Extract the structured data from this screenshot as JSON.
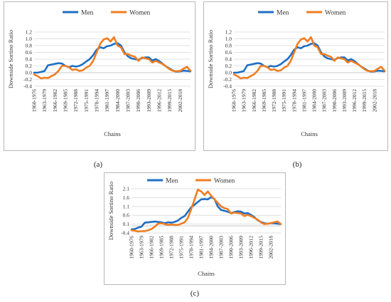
{
  "chart_data": [
    {
      "type": "line",
      "panel_label": "(a)",
      "xlabel": "Chains",
      "ylabel": "Downside Sortino Ratio",
      "ylim": [
        -0.4,
        1.2
      ],
      "yticks": [
        "-0.4",
        "-0.2",
        "0.0",
        "0.2",
        "0.4",
        "0.6",
        "0.8",
        "1.0",
        "1.2"
      ],
      "ytick_values": [
        -0.4,
        -0.2,
        0.0,
        0.2,
        0.4,
        0.6,
        0.8,
        1.0,
        1.2
      ],
      "xtick_labels": [
        "1960-1976",
        "1963-1979",
        "1966-1982",
        "1969-1985",
        "1972-1988",
        "1975-1991",
        "1978-1994",
        "1981-1997",
        "1984-2000",
        "1987-2003",
        "1990-2006",
        "1993-2009",
        "1996-2012",
        "1999-2015",
        "2002-2018"
      ],
      "legend_position": "top",
      "grid": "horizontal",
      "series": [
        {
          "name": "Men",
          "color": "#1f6fc5",
          "values": [
            0.0,
            0.0,
            0.02,
            0.05,
            0.22,
            0.24,
            0.26,
            0.28,
            0.27,
            0.2,
            0.16,
            0.2,
            0.18,
            0.2,
            0.25,
            0.33,
            0.4,
            0.52,
            0.68,
            0.75,
            0.72,
            0.78,
            0.8,
            0.85,
            0.87,
            0.8,
            0.6,
            0.48,
            0.42,
            0.4,
            0.38,
            0.43,
            0.45,
            0.45,
            0.36,
            0.4,
            0.34,
            0.26,
            0.18,
            0.12,
            0.06,
            0.03,
            0.04,
            0.06,
            0.05,
            0.04
          ]
        },
        {
          "name": "Women",
          "color": "#f07d22",
          "values": [
            -0.05,
            -0.1,
            -0.17,
            -0.15,
            -0.16,
            -0.1,
            -0.05,
            0.05,
            0.2,
            0.2,
            0.16,
            0.08,
            0.1,
            0.05,
            0.07,
            0.15,
            0.2,
            0.35,
            0.6,
            0.85,
            0.98,
            1.02,
            0.92,
            1.05,
            0.8,
            0.75,
            0.55,
            0.55,
            0.5,
            0.47,
            0.35,
            0.45,
            0.42,
            0.4,
            0.3,
            0.35,
            0.3,
            0.25,
            0.18,
            0.1,
            0.05,
            0.04,
            0.05,
            0.12,
            0.17,
            0.06
          ]
        }
      ]
    },
    {
      "type": "line",
      "panel_label": "(b)",
      "xlabel": "Chains",
      "ylabel": "Downside Sortino Ratio",
      "ylim": [
        -0.4,
        1.2
      ],
      "yticks": [
        "-0.4",
        "-0.2",
        "0.0",
        "0.2",
        "0.4",
        "0.6",
        "0.8",
        "1.0",
        "1.2"
      ],
      "ytick_values": [
        -0.4,
        -0.2,
        0.0,
        0.2,
        0.4,
        0.6,
        0.8,
        1.0,
        1.2
      ],
      "xtick_labels": [
        "1960-1976",
        "1963-1979",
        "1966-1982",
        "1969-1985",
        "1972-1988",
        "1975-1991",
        "1978-1994",
        "1981-1997",
        "1984-2000",
        "1987-2003",
        "1990-2006",
        "1993-2009",
        "1996-2012",
        "1999-2015",
        "2002-2018"
      ],
      "legend_position": "top",
      "grid": "horizontal",
      "series": [
        {
          "name": "Men",
          "color": "#1f6fc5",
          "values": [
            0.0,
            0.0,
            0.02,
            0.05,
            0.22,
            0.24,
            0.26,
            0.28,
            0.27,
            0.2,
            0.16,
            0.2,
            0.18,
            0.2,
            0.25,
            0.33,
            0.4,
            0.52,
            0.68,
            0.75,
            0.72,
            0.78,
            0.8,
            0.85,
            0.87,
            0.8,
            0.6,
            0.48,
            0.42,
            0.4,
            0.38,
            0.43,
            0.45,
            0.45,
            0.36,
            0.4,
            0.34,
            0.26,
            0.18,
            0.12,
            0.06,
            0.03,
            0.04,
            0.06,
            0.05,
            0.04
          ]
        },
        {
          "name": "Women",
          "color": "#f07d22",
          "values": [
            -0.05,
            -0.1,
            -0.17,
            -0.15,
            -0.16,
            -0.1,
            -0.05,
            0.05,
            0.2,
            0.2,
            0.16,
            0.08,
            0.1,
            0.05,
            0.07,
            0.15,
            0.2,
            0.35,
            0.6,
            0.85,
            0.98,
            1.02,
            0.92,
            1.05,
            0.8,
            0.75,
            0.55,
            0.55,
            0.5,
            0.47,
            0.35,
            0.45,
            0.42,
            0.4,
            0.3,
            0.35,
            0.3,
            0.25,
            0.18,
            0.1,
            0.05,
            0.04,
            0.05,
            0.12,
            0.17,
            0.06
          ]
        }
      ]
    },
    {
      "type": "line",
      "panel_label": "(c)",
      "xlabel": "Chains",
      "ylabel": "Downside Sortino Ratio",
      "ylim": [
        -0.4,
        2.1
      ],
      "yticks": [
        "-0.4",
        "0.1",
        "0.6",
        "1.1",
        "1.6",
        "2.1"
      ],
      "ytick_values": [
        -0.4,
        0.1,
        0.6,
        1.1,
        1.6,
        2.1
      ],
      "xtick_labels": [
        "1960-1976",
        "1963-1979",
        "1966-1982",
        "1969-1985",
        "1972-1988",
        "1975-1991",
        "1978-1994",
        "1981-1997",
        "1984-2000",
        "1987-2003",
        "1990-2006",
        "1993-2009",
        "1996-2012",
        "1999-2015",
        "2002-2018"
      ],
      "legend_position": "top",
      "grid": "horizontal",
      "series": [
        {
          "name": "Men",
          "color": "#1f6fc5",
          "values": [
            -0.2,
            -0.18,
            -0.1,
            -0.05,
            0.18,
            0.2,
            0.22,
            0.24,
            0.22,
            0.2,
            0.15,
            0.2,
            0.18,
            0.22,
            0.3,
            0.45,
            0.55,
            0.8,
            1.05,
            1.2,
            1.35,
            1.5,
            1.52,
            1.5,
            1.62,
            1.52,
            1.1,
            0.9,
            0.85,
            0.8,
            0.72,
            0.78,
            0.82,
            0.8,
            0.7,
            0.72,
            0.62,
            0.5,
            0.32,
            0.22,
            0.15,
            0.12,
            0.15,
            0.14,
            0.12,
            0.1
          ]
        },
        {
          "name": "Women",
          "color": "#f07d22",
          "values": [
            -0.25,
            -0.28,
            -0.32,
            -0.3,
            -0.3,
            -0.25,
            -0.18,
            -0.05,
            0.12,
            0.15,
            0.1,
            0.05,
            0.08,
            0.05,
            0.05,
            0.12,
            0.2,
            0.45,
            0.95,
            1.5,
            2.05,
            1.95,
            1.75,
            1.95,
            1.7,
            1.5,
            1.3,
            1.1,
            1.0,
            0.95,
            0.7,
            0.75,
            0.72,
            0.7,
            0.55,
            0.62,
            0.55,
            0.45,
            0.35,
            0.2,
            0.1,
            0.12,
            0.15,
            0.2,
            0.25,
            0.1
          ]
        }
      ]
    }
  ]
}
